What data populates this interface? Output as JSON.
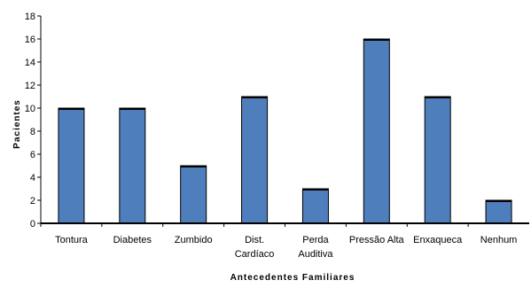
{
  "chart_data": {
    "type": "bar",
    "title": "",
    "xlabel": "Antecedentes Familiares",
    "ylabel": "Pacientes",
    "ylim": [
      0,
      18
    ],
    "yticks": [
      0,
      2,
      4,
      6,
      8,
      10,
      12,
      14,
      16,
      18
    ],
    "grid": false,
    "categories": [
      {
        "lines": [
          "Tontura"
        ],
        "value": 10
      },
      {
        "lines": [
          "Diabetes"
        ],
        "value": 10
      },
      {
        "lines": [
          "Zumbido"
        ],
        "value": 5
      },
      {
        "lines": [
          "Dist.",
          "Cardíaco"
        ],
        "value": 11
      },
      {
        "lines": [
          "Perda",
          "Auditiva"
        ],
        "value": 3
      },
      {
        "lines": [
          "Pressão Alta"
        ],
        "value": 16
      },
      {
        "lines": [
          "Enxaqueca"
        ],
        "value": 11
      },
      {
        "lines": [
          "Nenhum"
        ],
        "value": 2
      }
    ],
    "bar_color": "#4f7ebd",
    "bar_outline": "#000000"
  }
}
